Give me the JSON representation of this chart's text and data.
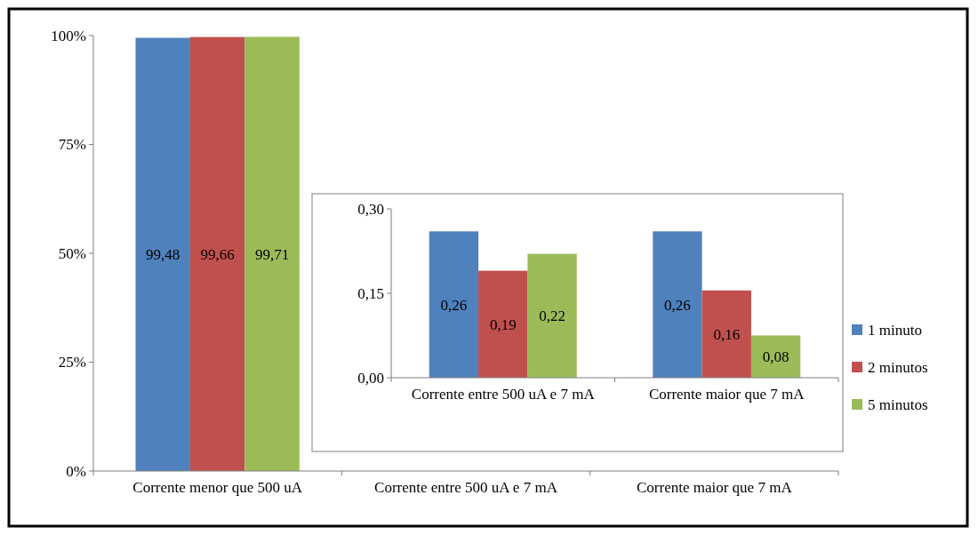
{
  "chart_data": [
    {
      "type": "bar",
      "categories": [
        "Corrente menor que 500 uA",
        "Corrente entre 500 uA e 7 mA",
        "Corrente maior que 7 mA"
      ],
      "series": [
        {
          "name": "1 minuto",
          "color": "#4f81bd",
          "values": [
            99.48,
            null,
            null
          ],
          "value_labels": [
            "99,48",
            null,
            null
          ]
        },
        {
          "name": "2 minutos",
          "color": "#c0504d",
          "values": [
            99.66,
            null,
            null
          ],
          "value_labels": [
            "99,66",
            null,
            null
          ]
        },
        {
          "name": "5 minutos",
          "color": "#9bbb59",
          "values": [
            99.71,
            null,
            null
          ],
          "value_labels": [
            "99,71",
            null,
            null
          ]
        }
      ],
      "ylim": [
        0,
        100
      ],
      "yticks": [
        {
          "value": 0,
          "label": "0%"
        },
        {
          "value": 25,
          "label": "25%"
        },
        {
          "value": 50,
          "label": "50%"
        },
        {
          "value": 75,
          "label": "75%"
        },
        {
          "value": 100,
          "label": "100%"
        }
      ],
      "grid": false,
      "legend": "right"
    },
    {
      "type": "bar",
      "categories": [
        "Corrente entre 500 uA e 7 mA",
        "Corrente maior que 7 mA"
      ],
      "series": [
        {
          "color": "#4f81bd",
          "values": [
            0.26,
            0.26
          ],
          "value_labels": [
            "0,26",
            "0,26"
          ]
        },
        {
          "color": "#c0504d",
          "values": [
            0.19,
            0.155
          ],
          "value_labels": [
            "0,19",
            "0,16"
          ]
        },
        {
          "color": "#9bbb59",
          "values": [
            0.22,
            0.075
          ],
          "value_labels": [
            "0,22",
            "0,08"
          ]
        }
      ],
      "ylim": [
        0,
        0.3
      ],
      "yticks": [
        {
          "value": 0,
          "label": "0,00"
        },
        {
          "value": 0.15,
          "label": "0,15"
        },
        {
          "value": 0.3,
          "label": "0,30"
        }
      ],
      "grid": false,
      "legend": false
    }
  ]
}
